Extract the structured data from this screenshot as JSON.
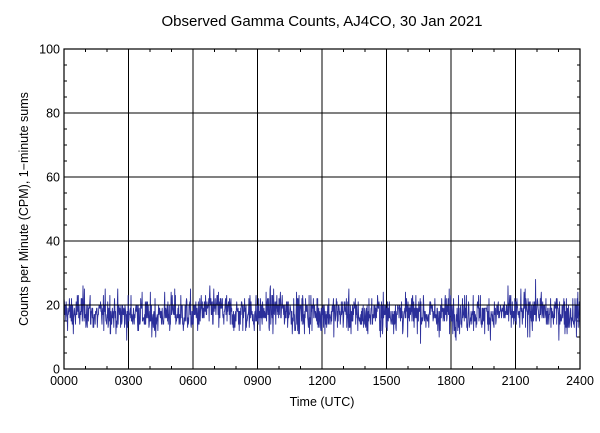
{
  "chart_data": {
    "type": "line",
    "title": "Observed Gamma Counts, AJ4CO, 30 Jan 2021",
    "xlabel": "Time (UTC)",
    "ylabel": "Counts per Minute (CPM), 1−minute sums",
    "xlim": [
      0,
      24
    ],
    "ylim": [
      0,
      100
    ],
    "x_ticks": [
      {
        "value": 0,
        "label": "0000"
      },
      {
        "value": 3,
        "label": "0300"
      },
      {
        "value": 6,
        "label": "0600"
      },
      {
        "value": 9,
        "label": "0900"
      },
      {
        "value": 12,
        "label": "1200"
      },
      {
        "value": 15,
        "label": "1500"
      },
      {
        "value": 18,
        "label": "1800"
      },
      {
        "value": 21,
        "label": "2100"
      },
      {
        "value": 24,
        "label": "2400"
      }
    ],
    "y_ticks": [
      {
        "value": 0,
        "label": "0"
      },
      {
        "value": 20,
        "label": "20"
      },
      {
        "value": 40,
        "label": "40"
      },
      {
        "value": 60,
        "label": "60"
      },
      {
        "value": 80,
        "label": "80"
      },
      {
        "value": 100,
        "label": "100"
      }
    ],
    "grid": true,
    "reference_line": {
      "y": 20
    },
    "series": [
      {
        "sampling": "1-minute",
        "color": "#2b2f9a",
        "mean": 17.5,
        "min": 5,
        "max": 33,
        "values_note_x_unit": "hours UTC",
        "x": [
          0,
          0.5,
          1,
          1.5,
          2,
          2.5,
          3,
          3.5,
          4,
          4.5,
          5,
          5.5,
          6,
          6.5,
          7,
          7.5,
          8,
          8.5,
          9,
          9.5,
          10,
          10.5,
          11,
          11.5,
          12,
          12.5,
          13,
          13.5,
          14,
          14.5,
          15,
          15.5,
          16,
          16.5,
          17,
          17.5,
          18,
          18.5,
          19,
          19.5,
          20,
          20.5,
          21,
          21.5,
          22,
          22.5,
          23,
          23.5,
          24
        ],
        "values": [
          18,
          17,
          19,
          16,
          18,
          17,
          17,
          18,
          16,
          17,
          18,
          17,
          17,
          18,
          19,
          18,
          17,
          18,
          17,
          18,
          19,
          18,
          17,
          18,
          17,
          17,
          18,
          17,
          16,
          18,
          17,
          18,
          17,
          18,
          17,
          17,
          18,
          17,
          18,
          17,
          17,
          18,
          17,
          18,
          19,
          17,
          18,
          17,
          17
        ]
      }
    ]
  },
  "colors": {
    "background": "#ffffff",
    "plot_background": "#ffffff",
    "grid": "#000000",
    "series": "#2b2f9a"
  }
}
